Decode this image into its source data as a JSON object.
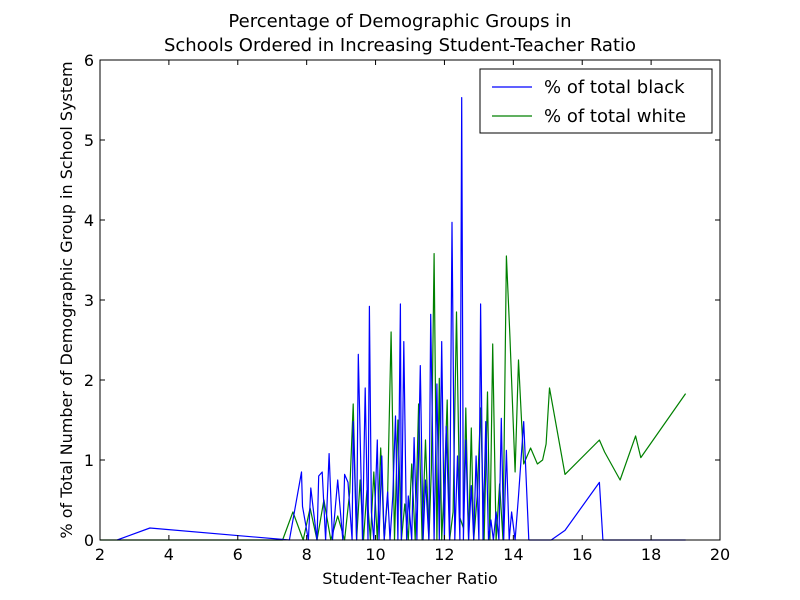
{
  "chart_data": {
    "type": "line",
    "title": "Percentage of Demographic Groups in Schools Ordered in Increasing Student-Teacher Ratio",
    "title_lines": [
      "Percentage of Demographic Groups in",
      "Schools Ordered in Increasing Student-Teacher Ratio"
    ],
    "xlabel": "Student-Teacher Ratio",
    "ylabel": "% of Total Number of Demographic Group in School System",
    "xlim": [
      2,
      20
    ],
    "ylim": [
      0,
      6
    ],
    "xticks": [
      2,
      4,
      6,
      8,
      10,
      12,
      14,
      16,
      18,
      20
    ],
    "yticks": [
      0,
      1,
      2,
      3,
      4,
      5,
      6
    ],
    "grid": false,
    "legend_position": "top-right",
    "series": [
      {
        "name": "% of total black",
        "color": "#0000ff",
        "x": [
          2.5,
          3.45,
          7.5,
          7.85,
          7.88,
          8.05,
          8.12,
          8.2,
          8.3,
          8.35,
          8.45,
          8.55,
          8.65,
          8.75,
          8.9,
          9.05,
          9.1,
          9.2,
          9.32,
          9.35,
          9.45,
          9.5,
          9.62,
          9.7,
          9.78,
          9.82,
          9.88,
          9.95,
          10.05,
          10.1,
          10.18,
          10.25,
          10.35,
          10.42,
          10.5,
          10.58,
          10.65,
          10.72,
          10.75,
          10.82,
          10.9,
          10.95,
          11.05,
          11.12,
          11.2,
          11.3,
          11.38,
          11.45,
          11.55,
          11.6,
          11.7,
          11.78,
          11.85,
          11.92,
          12.0,
          12.05,
          12.15,
          12.22,
          12.3,
          12.38,
          12.45,
          12.5,
          12.55,
          12.62,
          12.7,
          12.78,
          12.85,
          12.92,
          13.0,
          13.05,
          13.12,
          13.2,
          13.28,
          13.35,
          13.42,
          13.5,
          13.58,
          13.65,
          13.72,
          13.8,
          13.88,
          13.95,
          14.05,
          14.15,
          14.3,
          14.45,
          14.7,
          15.1,
          15.5,
          16.5,
          16.6,
          19.0
        ],
        "y": [
          0.0,
          0.15,
          0.0,
          0.85,
          0.42,
          0.0,
          0.65,
          0.35,
          0.0,
          0.8,
          0.85,
          0.0,
          1.08,
          0.0,
          0.75,
          0.0,
          0.82,
          0.72,
          0.0,
          1.48,
          0.0,
          2.32,
          0.0,
          1.9,
          0.0,
          2.92,
          0.35,
          0.0,
          1.25,
          0.0,
          1.05,
          0.0,
          0.6,
          0.0,
          0.55,
          1.55,
          0.0,
          2.95,
          0.0,
          2.48,
          0.0,
          0.55,
          0.0,
          1.28,
          0.0,
          2.18,
          0.0,
          0.75,
          0.0,
          2.82,
          0.0,
          1.95,
          0.0,
          2.48,
          0.0,
          1.42,
          0.0,
          3.97,
          0.0,
          1.05,
          0.0,
          5.53,
          0.0,
          1.25,
          0.0,
          0.68,
          0.0,
          1.05,
          0.0,
          2.95,
          0.0,
          1.48,
          0.0,
          0.25,
          0.0,
          0.35,
          0.0,
          1.52,
          0.0,
          1.12,
          0.0,
          0.35,
          0.0,
          0.55,
          1.48,
          0.0,
          0.0,
          0.0,
          0.12,
          0.72,
          0.0,
          0.0
        ]
      },
      {
        "name": "% of total white",
        "color": "#008000",
        "x": [
          2.0,
          7.3,
          7.6,
          7.9,
          8.1,
          8.3,
          8.5,
          8.7,
          8.9,
          9.1,
          9.25,
          9.35,
          9.45,
          9.55,
          9.65,
          9.75,
          9.85,
          9.95,
          10.05,
          10.15,
          10.25,
          10.35,
          10.45,
          10.55,
          10.65,
          10.75,
          10.85,
          10.95,
          11.05,
          11.15,
          11.25,
          11.35,
          11.45,
          11.55,
          11.62,
          11.7,
          11.78,
          11.85,
          11.92,
          12.0,
          12.08,
          12.15,
          12.25,
          12.35,
          12.45,
          12.55,
          12.62,
          12.7,
          12.78,
          12.85,
          12.95,
          13.05,
          13.15,
          13.25,
          13.32,
          13.4,
          13.5,
          13.6,
          13.7,
          13.8,
          13.9,
          14.05,
          14.15,
          14.3,
          14.5,
          14.7,
          14.85,
          14.95,
          15.05,
          15.5,
          16.5,
          16.65,
          17.1,
          17.55,
          17.7,
          19.0
        ],
        "y": [
          0.0,
          0.0,
          0.35,
          0.0,
          0.4,
          0.0,
          0.5,
          0.0,
          0.3,
          0.0,
          0.6,
          1.7,
          0.0,
          0.75,
          0.0,
          0.62,
          0.0,
          0.85,
          0.0,
          1.15,
          0.0,
          0.55,
          2.6,
          0.0,
          1.5,
          0.0,
          0.45,
          0.0,
          0.95,
          0.0,
          1.7,
          0.0,
          1.25,
          0.0,
          0.9,
          3.58,
          0.0,
          2.02,
          0.0,
          0.72,
          1.75,
          0.0,
          0.35,
          2.85,
          0.28,
          0.15,
          1.65,
          0.0,
          1.4,
          0.0,
          0.55,
          1.65,
          0.0,
          1.85,
          0.0,
          2.45,
          0.0,
          0.7,
          0.0,
          3.55,
          2.55,
          0.85,
          2.25,
          0.95,
          1.15,
          0.95,
          1.0,
          1.2,
          1.9,
          0.82,
          1.25,
          1.1,
          0.75,
          1.3,
          1.03,
          1.83
        ]
      }
    ]
  }
}
